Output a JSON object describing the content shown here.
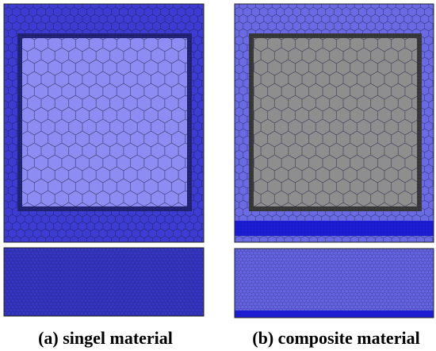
{
  "panels": [
    {
      "caption": "(a) singel material"
    },
    {
      "caption": "(b) composite material"
    }
  ]
}
